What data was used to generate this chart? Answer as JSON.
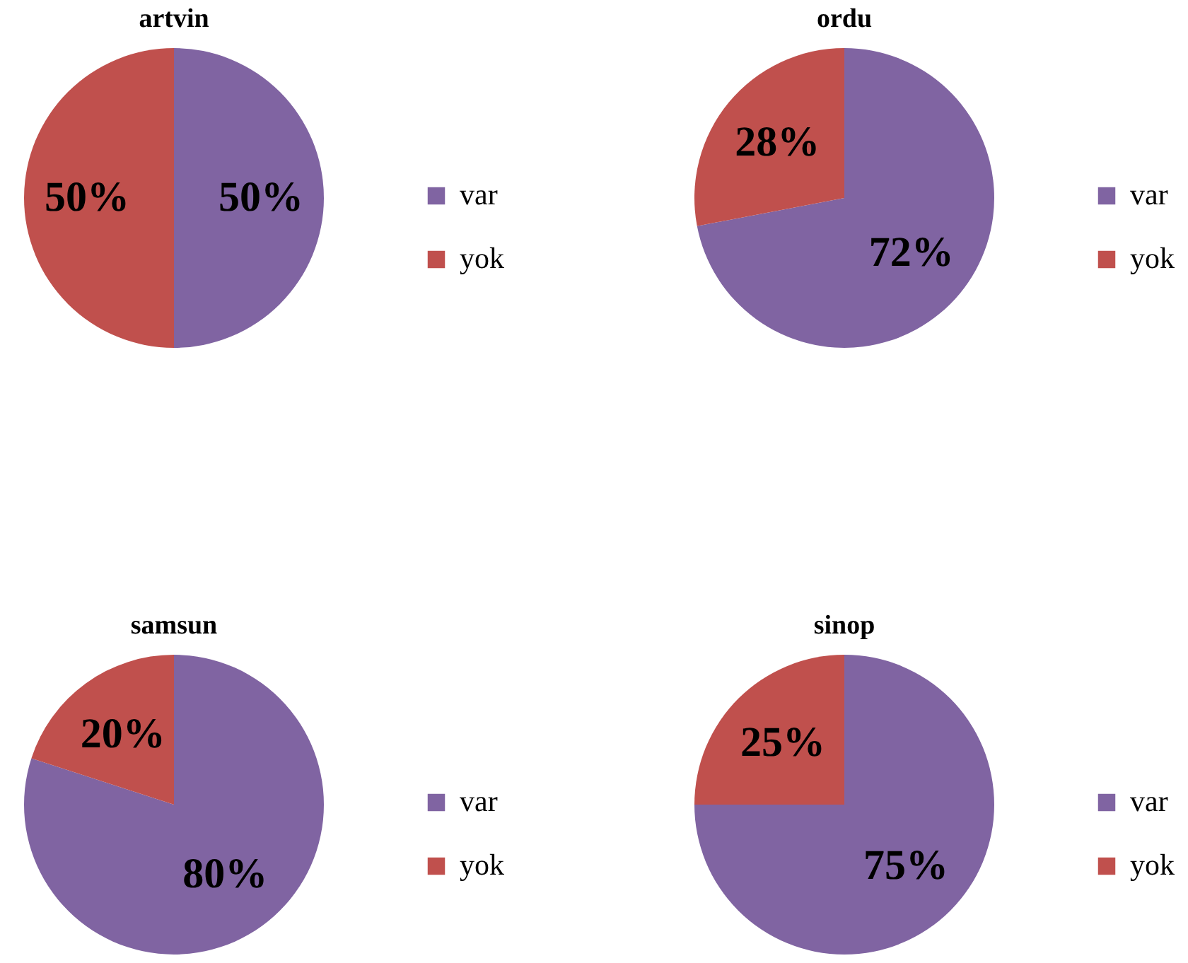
{
  "chart_data": [
    {
      "type": "pie",
      "title": "artvin",
      "categories": [
        "var",
        "yok"
      ],
      "values": [
        50,
        50
      ],
      "colors": [
        "#8064a2",
        "#c0504d"
      ],
      "value_labels": [
        "50%",
        "50%"
      ],
      "legend": "right"
    },
    {
      "type": "pie",
      "title": "ordu",
      "categories": [
        "var",
        "yok"
      ],
      "values": [
        72,
        28
      ],
      "colors": [
        "#8064a2",
        "#c0504d"
      ],
      "value_labels": [
        "72%",
        "28%"
      ],
      "legend": "right"
    },
    {
      "type": "pie",
      "title": "samsun",
      "categories": [
        "var",
        "yok"
      ],
      "values": [
        80,
        20
      ],
      "colors": [
        "#8064a2",
        "#c0504d"
      ],
      "value_labels": [
        "80%",
        "20%"
      ],
      "legend": "right"
    },
    {
      "type": "pie",
      "title": "sinop",
      "categories": [
        "var",
        "yok"
      ],
      "values": [
        75,
        25
      ],
      "colors": [
        "#8064a2",
        "#c0504d"
      ],
      "value_labels": [
        "75%",
        "25%"
      ],
      "legend": "right"
    }
  ]
}
